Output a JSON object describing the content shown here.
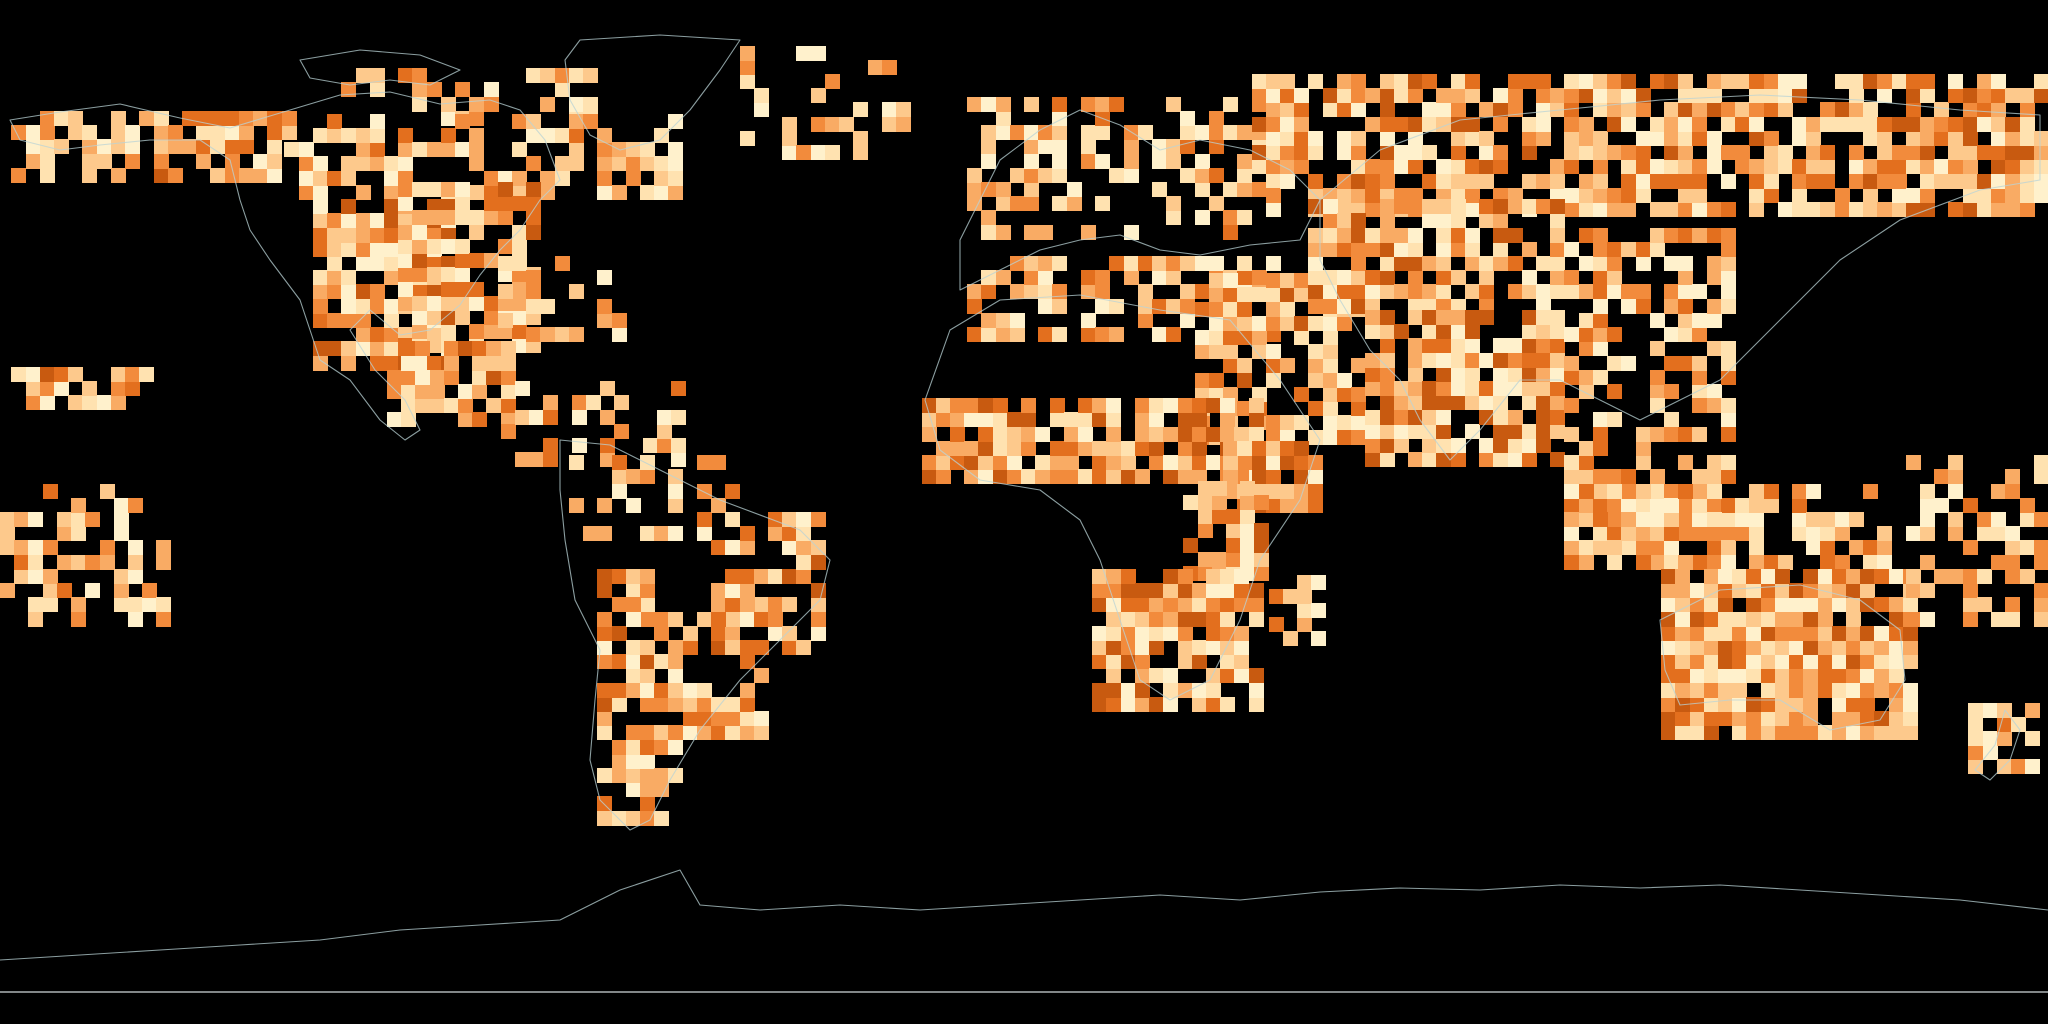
{
  "map": {
    "projection": "equirectangular",
    "background_color": "#000000",
    "coastline_color": "#b9d3d6",
    "grid_cell_degrees": 2.5,
    "color_scale": [
      "#fff1cc",
      "#ffe2b0",
      "#fdc98c",
      "#f9ab64",
      "#f28b3c",
      "#e36f1e",
      "#c85a10"
    ],
    "regions": [
      {
        "name": "alaska-yukon",
        "lon": [
          -178,
          -130
        ],
        "lat": [
          58,
          70
        ],
        "density": 0.62
      },
      {
        "name": "canada-arctic-islands",
        "lon": [
          -120,
          -75
        ],
        "lat": [
          68,
          78
        ],
        "density": 0.35
      },
      {
        "name": "canada-north",
        "lon": [
          -130,
          -60
        ],
        "lat": [
          55,
          68
        ],
        "density": 0.5
      },
      {
        "name": "north-america-west",
        "lon": [
          -125,
          -100
        ],
        "lat": [
          25,
          55
        ],
        "density": 0.78
      },
      {
        "name": "north-america-central",
        "lon": [
          -110,
          -85
        ],
        "lat": [
          28,
          58
        ],
        "density": 0.66
      },
      {
        "name": "north-america-east",
        "lon": [
          -95,
          -70
        ],
        "lat": [
          30,
          45
        ],
        "density": 0.35
      },
      {
        "name": "mexico",
        "lon": [
          -112,
          -90
        ],
        "lat": [
          15,
          30
        ],
        "density": 0.78
      },
      {
        "name": "central-america-caribbean",
        "lon": [
          -92,
          -60
        ],
        "lat": [
          8,
          22
        ],
        "density": 0.42
      },
      {
        "name": "greenland-coast",
        "lon": [
          -50,
          -20
        ],
        "lat": [
          62,
          80
        ],
        "density": 0.28
      },
      {
        "name": "south-america-north",
        "lon": [
          -80,
          -50
        ],
        "lat": [
          -5,
          10
        ],
        "density": 0.4
      },
      {
        "name": "brazil-east",
        "lon": [
          -55,
          -35
        ],
        "lat": [
          -25,
          -2
        ],
        "density": 0.62
      },
      {
        "name": "andes-chile",
        "lon": [
          -75,
          -65
        ],
        "lat": [
          -40,
          -10
        ],
        "density": 0.7
      },
      {
        "name": "argentina-paraguay",
        "lon": [
          -70,
          -45
        ],
        "lat": [
          -40,
          -15
        ],
        "density": 0.58
      },
      {
        "name": "patagonia",
        "lon": [
          -75,
          -62
        ],
        "lat": [
          -55,
          -40
        ],
        "density": 0.62
      },
      {
        "name": "hawaii",
        "lon": [
          -178,
          -154
        ],
        "lat": [
          18,
          25
        ],
        "density": 0.75
      },
      {
        "name": "pacific-islands-central",
        "lon": [
          -180,
          -150
        ],
        "lat": [
          -20,
          5
        ],
        "density": 0.4
      },
      {
        "name": "northern-europe",
        "lon": [
          -10,
          45
        ],
        "lat": [
          48,
          72
        ],
        "density": 0.42
      },
      {
        "name": "mediterranean",
        "lon": [
          -10,
          45
        ],
        "lat": [
          30,
          45
        ],
        "density": 0.58
      },
      {
        "name": "middle-east",
        "lon": [
          30,
          60
        ],
        "lat": [
          12,
          40
        ],
        "density": 0.62
      },
      {
        "name": "sahel",
        "lon": [
          -18,
          40
        ],
        "lat": [
          5,
          18
        ],
        "density": 0.85
      },
      {
        "name": "horn-of-africa",
        "lon": [
          35,
          52
        ],
        "lat": [
          0,
          12
        ],
        "density": 0.8
      },
      {
        "name": "east-africa",
        "lon": [
          28,
          42
        ],
        "lat": [
          -12,
          5
        ],
        "density": 0.68
      },
      {
        "name": "southern-africa",
        "lon": [
          12,
          40
        ],
        "lat": [
          -35,
          -10
        ],
        "density": 0.85
      },
      {
        "name": "madagascar",
        "lon": [
          43,
          51
        ],
        "lat": [
          -26,
          -12
        ],
        "density": 0.55
      },
      {
        "name": "siberia",
        "lon": [
          40,
          180
        ],
        "lat": [
          52,
          75
        ],
        "density": 0.72
      },
      {
        "name": "central-asia",
        "lon": [
          50,
          95
        ],
        "lat": [
          35,
          55
        ],
        "density": 0.72
      },
      {
        "name": "south-asia",
        "lon": [
          60,
          95
        ],
        "lat": [
          8,
          35
        ],
        "density": 0.82
      },
      {
        "name": "china",
        "lon": [
          95,
          125
        ],
        "lat": [
          20,
          50
        ],
        "density": 0.58
      },
      {
        "name": "southeast-asia",
        "lon": [
          95,
          125
        ],
        "lat": [
          -10,
          20
        ],
        "density": 0.55
      },
      {
        "name": "indonesia-new-guinea",
        "lon": [
          95,
          152
        ],
        "lat": [
          -10,
          5
        ],
        "density": 0.55
      },
      {
        "name": "australia",
        "lon": [
          112,
          155
        ],
        "lat": [
          -40,
          -12
        ],
        "density": 0.95
      },
      {
        "name": "new-zealand",
        "lon": [
          166,
          178
        ],
        "lat": [
          -46,
          -35
        ],
        "density": 0.6
      },
      {
        "name": "pacific-islands-west",
        "lon": [
          155,
          180
        ],
        "lat": [
          -20,
          10
        ],
        "density": 0.45
      }
    ]
  }
}
